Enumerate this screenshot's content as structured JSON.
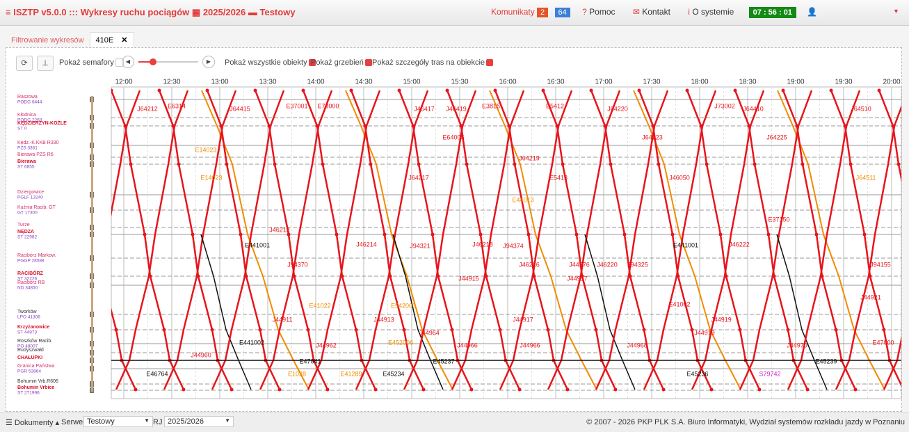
{
  "header": {
    "app_title": "ISZTP v5.0.0 ::: Wykresy ruchu pociągów",
    "timetable_year": "2025/2026",
    "server": "Testowy",
    "messages": "Komunikaty",
    "badge_red": "2",
    "badge_blue": "64",
    "help": "Pomoc",
    "contact": "Kontakt",
    "about": "O systemie",
    "clock": "07 : 56 : 01"
  },
  "tabs": [
    "Filtrowanie wykresów",
    "410E"
  ],
  "toolbar": {
    "semaphores": "Pokaż semafory",
    "all_objects": "Pokaż wszystkie obiekty",
    "comb": "Pokaż grzebień",
    "route_details": "Pokaż szczegóły tras na obiekcie"
  },
  "time_axis": [
    "12:00",
    "12:30",
    "13:00",
    "13:30",
    "14:00",
    "14:30",
    "15:00",
    "15:30",
    "16:00",
    "16:30",
    "17:00",
    "17:30",
    "18:00",
    "18:30",
    "19:00",
    "19:30",
    "20:00"
  ],
  "stations": [
    {
      "name": "Raszowa",
      "code": "PODG 6444"
    },
    {
      "name": "Kłodnica",
      "code": "PODG 2268"
    },
    {
      "name": "KĘDZIERZYN-KOŹLE",
      "code": "ST 0"
    },
    {
      "name": "Kędz.-K.KKB R330",
      "code": "PZS 3361"
    },
    {
      "name": "Bierawa PZS R6",
      "code": null
    },
    {
      "name": "Bierawa",
      "code": "ST 6855"
    },
    {
      "name": "Dziergowice",
      "code": "PGLF 13240"
    },
    {
      "name": "Kuźnia Racib. GT",
      "code": "GT 17300"
    },
    {
      "name": "Turze",
      "code": null
    },
    {
      "name": "NĘDZA",
      "code": "ST 22982"
    },
    {
      "name": "Racibórz Markow.",
      "code": "PGGP 28088"
    },
    {
      "name": "RACIBÓRZ",
      "code": "ST 32226"
    },
    {
      "name": "Racibórz RB",
      "code": "ND 34850"
    },
    {
      "name": "Tworków",
      "code": "LPO 41306"
    },
    {
      "name": "Krzyżanowice",
      "code": "ST 44973"
    },
    {
      "name": "Roszków Racib.",
      "code": "PO 48007"
    },
    {
      "name": "Rudyszwałd",
      "code": null
    },
    {
      "name": "CHAŁUPKI",
      "code": null
    },
    {
      "name": "Granica Państwa",
      "code": "PGR 53864"
    },
    {
      "name": "Bohumin Vrb.R606",
      "code": null
    },
    {
      "name": "Bohumin Vrbice",
      "code": "ST 271996"
    }
  ],
  "trains": [
    {
      "label": "J64212",
      "color": "#e8141b"
    },
    {
      "label": "E6314",
      "color": "#e8141b"
    },
    {
      "label": "J64415",
      "color": "#e8141b"
    },
    {
      "label": "E37001",
      "color": "#e8141b"
    },
    {
      "label": "E73000",
      "color": "#e8141b"
    },
    {
      "label": "J46417",
      "color": "#e8141b"
    },
    {
      "label": "J46419",
      "color": "#e8141b"
    },
    {
      "label": "E3815",
      "color": "#e8141b"
    },
    {
      "label": "E5412",
      "color": "#e8141b"
    },
    {
      "label": "J64220",
      "color": "#e8141b"
    },
    {
      "label": "J73002",
      "color": "#e8141b"
    },
    {
      "label": "J64410",
      "color": "#e8141b"
    },
    {
      "label": "J64510",
      "color": "#e8141b"
    },
    {
      "label": "E64005",
      "color": "#e8141b"
    },
    {
      "label": "J64223",
      "color": "#e8141b"
    },
    {
      "label": "J64225",
      "color": "#e8141b"
    },
    {
      "label": "E14023",
      "color": "#f08c00"
    },
    {
      "label": "J64219",
      "color": "#e8141b"
    },
    {
      "label": "E14023",
      "color": "#f08c00"
    },
    {
      "label": "J64217",
      "color": "#e8141b"
    },
    {
      "label": "E5413",
      "color": "#e8141b"
    },
    {
      "label": "J46050",
      "color": "#e8141b"
    },
    {
      "label": "J64511",
      "color": "#f08c00"
    },
    {
      "label": "E44013",
      "color": "#f08c00"
    },
    {
      "label": "E37150",
      "color": "#e8141b"
    },
    {
      "label": "J46212",
      "color": "#e8141b"
    },
    {
      "label": "E441001",
      "color": "#111111"
    },
    {
      "label": "J46214",
      "color": "#e8141b"
    },
    {
      "label": "J94321",
      "color": "#e8141b"
    },
    {
      "label": "J46218",
      "color": "#e8141b"
    },
    {
      "label": "J94374",
      "color": "#e8141b"
    },
    {
      "label": "E441001",
      "color": "#111111"
    },
    {
      "label": "J46222",
      "color": "#e8141b"
    },
    {
      "label": "J94370",
      "color": "#e8141b"
    },
    {
      "label": "J46216",
      "color": "#e8141b"
    },
    {
      "label": "J44576",
      "color": "#e8141b"
    },
    {
      "label": "J46220",
      "color": "#e8141b"
    },
    {
      "label": "J94325",
      "color": "#e8141b"
    },
    {
      "label": "J94155",
      "color": "#e8141b"
    },
    {
      "label": "J44915",
      "color": "#e8141b"
    },
    {
      "label": "J44917",
      "color": "#e8141b"
    },
    {
      "label": "E41022",
      "color": "#f08c00"
    },
    {
      "label": "E542003",
      "color": "#f08c00"
    },
    {
      "label": "E41002",
      "color": "#e8141b"
    },
    {
      "label": "J44921",
      "color": "#e8141b"
    },
    {
      "label": "J44911",
      "color": "#e8141b"
    },
    {
      "label": "J44913",
      "color": "#e8141b"
    },
    {
      "label": "J44917",
      "color": "#e8141b"
    },
    {
      "label": "J44919",
      "color": "#e8141b"
    },
    {
      "label": "J44964",
      "color": "#e8141b"
    },
    {
      "label": "J44919",
      "color": "#e8141b"
    },
    {
      "label": "E441002",
      "color": "#111111"
    },
    {
      "label": "E452006",
      "color": "#f08c00"
    },
    {
      "label": "J44962",
      "color": "#e8141b"
    },
    {
      "label": "J44966",
      "color": "#e8141b"
    },
    {
      "label": "J44966",
      "color": "#e8141b"
    },
    {
      "label": "J44968",
      "color": "#e8141b"
    },
    {
      "label": "J44970",
      "color": "#e8141b"
    },
    {
      "label": "E47000",
      "color": "#e8141b"
    },
    {
      "label": "J44960",
      "color": "#e8141b"
    },
    {
      "label": "E47041",
      "color": "#111111"
    },
    {
      "label": "E45237",
      "color": "#111111"
    },
    {
      "label": "E45239",
      "color": "#111111"
    },
    {
      "label": "E46764",
      "color": "#111111"
    },
    {
      "label": "E1028",
      "color": "#f08c00"
    },
    {
      "label": "E41289",
      "color": "#f08c00"
    },
    {
      "label": "E45234",
      "color": "#111111"
    },
    {
      "label": "E45236",
      "color": "#111111"
    },
    {
      "label": "S79742",
      "color": "#d020d0"
    }
  ],
  "footer": {
    "documents": "Dokumenty",
    "server_label": "Serwer",
    "server_value": "Testowy",
    "rj_label": "RJ",
    "rj_value": "2025/2026",
    "copyright": "© 2007 - 2026 PKP PLK S.A. Biuro Informatyki, Wydział systemów rozkładu jazdy w Poznaniu"
  }
}
